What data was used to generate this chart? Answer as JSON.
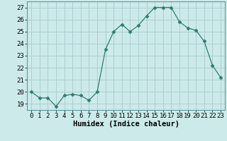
{
  "x": [
    0,
    1,
    2,
    3,
    4,
    5,
    6,
    7,
    8,
    9,
    10,
    11,
    12,
    13,
    14,
    15,
    16,
    17,
    18,
    19,
    20,
    21,
    22,
    23
  ],
  "y": [
    20.0,
    19.5,
    19.5,
    18.8,
    19.7,
    19.8,
    19.7,
    19.3,
    20.0,
    23.5,
    25.0,
    25.6,
    25.0,
    25.5,
    26.3,
    27.0,
    27.0,
    27.0,
    25.8,
    25.3,
    25.1,
    24.2,
    22.2,
    21.2
  ],
  "line_color": "#2e7d6e",
  "marker": "D",
  "marker_size": 2.5,
  "bg_color": "#cdeaea",
  "grid_color": "#aacfcf",
  "xlabel": "Humidex (Indice chaleur)",
  "ylabel_ticks": [
    19,
    20,
    21,
    22,
    23,
    24,
    25,
    26,
    27
  ],
  "xlim": [
    -0.5,
    23.5
  ],
  "ylim": [
    18.5,
    27.5
  ],
  "xticks": [
    0,
    1,
    2,
    3,
    4,
    5,
    6,
    7,
    8,
    9,
    10,
    11,
    12,
    13,
    14,
    15,
    16,
    17,
    18,
    19,
    20,
    21,
    22,
    23
  ],
  "tick_fontsize": 6.5,
  "label_fontsize": 7.5
}
